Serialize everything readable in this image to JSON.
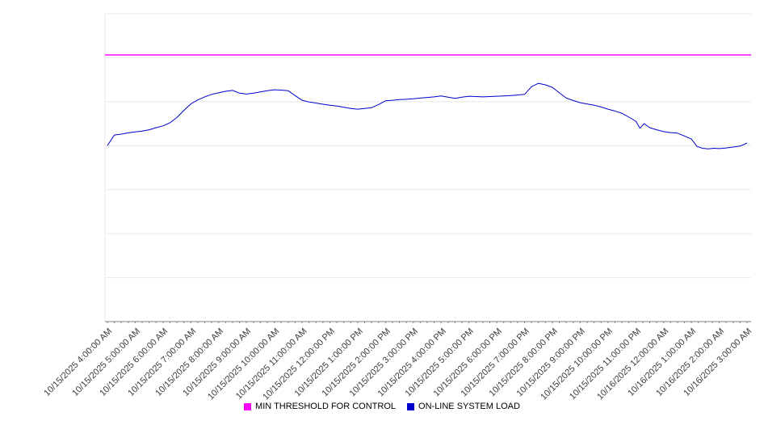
{
  "chart_data": {
    "type": "line",
    "title": "",
    "xlabel": "",
    "ylabel": "",
    "ylim": [
      0,
      100
    ],
    "grid_divisions": 7,
    "grid": true,
    "legend_position": "bottom",
    "x_tick_labels": [
      "10/15/2025 4:00:00 AM",
      "10/15/2025 5:00:00 AM",
      "10/15/2025 6:00:00 AM",
      "10/15/2025 7:00:00 AM",
      "10/15/2025 8:00:00 AM",
      "10/15/2025 9:00:00 AM",
      "10/15/2025 10:00:00 AM",
      "10/15/2025 11:00:00 AM",
      "10/15/2025 12:00:00 PM",
      "10/15/2025 1:00:00 PM",
      "10/15/2025 2:00:00 PM",
      "10/15/2025 3:00:00 PM",
      "10/15/2025 4:00:00 PM",
      "10/15/2025 5:00:00 PM",
      "10/15/2025 6:00:00 PM",
      "10/15/2025 7:00:00 PM",
      "10/15/2025 8:00:00 PM",
      "10/15/2025 9:00:00 PM",
      "10/15/2025 10:00:00 PM",
      "10/15/2025 11:00:00 PM",
      "10/16/2025 12:00:00 AM",
      "10/16/2025 1:00:00 AM",
      "10/16/2025 2:00:00 AM",
      "10/16/2025 3:00:00 AM"
    ],
    "series": [
      {
        "name": "MIN THRESHOLD FOR CONTROL",
        "color": "#ff00ff",
        "style": "constant",
        "value": 86.6
      },
      {
        "name": "ON-LINE SYSTEM LOAD",
        "color": "#0000cd",
        "style": "line",
        "points": [
          [
            0.0,
            57.2
          ],
          [
            0.25,
            60.6
          ],
          [
            0.5,
            60.9
          ],
          [
            0.75,
            61.3
          ],
          [
            1.0,
            61.6
          ],
          [
            1.25,
            61.9
          ],
          [
            1.5,
            62.3
          ],
          [
            1.75,
            63.0
          ],
          [
            2.0,
            63.6
          ],
          [
            2.25,
            64.6
          ],
          [
            2.5,
            66.3
          ],
          [
            2.75,
            68.6
          ],
          [
            3.0,
            70.7
          ],
          [
            3.25,
            72.0
          ],
          [
            3.5,
            73.0
          ],
          [
            3.75,
            73.8
          ],
          [
            4.0,
            74.3
          ],
          [
            4.25,
            74.8
          ],
          [
            4.5,
            75.1
          ],
          [
            4.75,
            74.2
          ],
          [
            5.0,
            73.9
          ],
          [
            5.25,
            74.2
          ],
          [
            5.5,
            74.6
          ],
          [
            5.75,
            75.0
          ],
          [
            6.0,
            75.3
          ],
          [
            6.25,
            75.2
          ],
          [
            6.5,
            75.0
          ],
          [
            6.75,
            73.4
          ],
          [
            7.0,
            71.9
          ],
          [
            7.25,
            71.3
          ],
          [
            7.5,
            71.0
          ],
          [
            7.75,
            70.6
          ],
          [
            8.0,
            70.3
          ],
          [
            8.25,
            70.0
          ],
          [
            8.5,
            69.6
          ],
          [
            8.75,
            69.2
          ],
          [
            9.0,
            69.0
          ],
          [
            9.25,
            69.2
          ],
          [
            9.5,
            69.5
          ],
          [
            9.75,
            70.5
          ],
          [
            10.0,
            71.7
          ],
          [
            10.25,
            71.9
          ],
          [
            10.5,
            72.1
          ],
          [
            10.75,
            72.2
          ],
          [
            11.0,
            72.4
          ],
          [
            11.25,
            72.6
          ],
          [
            11.5,
            72.8
          ],
          [
            11.75,
            73.0
          ],
          [
            12.0,
            73.3
          ],
          [
            12.25,
            72.9
          ],
          [
            12.5,
            72.5
          ],
          [
            12.75,
            72.9
          ],
          [
            13.0,
            73.2
          ],
          [
            13.25,
            73.1
          ],
          [
            13.5,
            73.0
          ],
          [
            13.75,
            73.1
          ],
          [
            14.0,
            73.2
          ],
          [
            14.25,
            73.3
          ],
          [
            14.5,
            73.4
          ],
          [
            14.75,
            73.6
          ],
          [
            15.0,
            73.8
          ],
          [
            15.25,
            76.3
          ],
          [
            15.5,
            77.4
          ],
          [
            15.75,
            76.9
          ],
          [
            16.0,
            76.1
          ],
          [
            16.25,
            74.3
          ],
          [
            16.5,
            72.6
          ],
          [
            16.75,
            71.8
          ],
          [
            17.0,
            71.1
          ],
          [
            17.25,
            70.7
          ],
          [
            17.5,
            70.3
          ],
          [
            17.75,
            69.7
          ],
          [
            18.0,
            69.0
          ],
          [
            18.25,
            68.4
          ],
          [
            18.5,
            67.7
          ],
          [
            18.75,
            66.4
          ],
          [
            19.0,
            65.1
          ],
          [
            19.15,
            62.8
          ],
          [
            19.3,
            64.3
          ],
          [
            19.5,
            63.0
          ],
          [
            19.75,
            62.3
          ],
          [
            20.0,
            61.7
          ],
          [
            20.25,
            61.4
          ],
          [
            20.5,
            61.2
          ],
          [
            20.75,
            60.3
          ],
          [
            21.0,
            59.3
          ],
          [
            21.2,
            56.9
          ],
          [
            21.4,
            56.3
          ],
          [
            21.6,
            56.1
          ],
          [
            21.8,
            56.3
          ],
          [
            22.0,
            56.2
          ],
          [
            22.25,
            56.4
          ],
          [
            22.5,
            56.7
          ],
          [
            22.75,
            57.0
          ],
          [
            23.0,
            58.0
          ]
        ]
      }
    ],
    "legend": [
      {
        "label": "MIN THRESHOLD FOR CONTROL",
        "color": "#ff00ff"
      },
      {
        "label": "ON-LINE SYSTEM LOAD",
        "color": "#0000cd"
      }
    ],
    "colors": {
      "grid": "#e8e8e8",
      "axis": "#808080",
      "tick_label": "#3c3c3c"
    }
  }
}
